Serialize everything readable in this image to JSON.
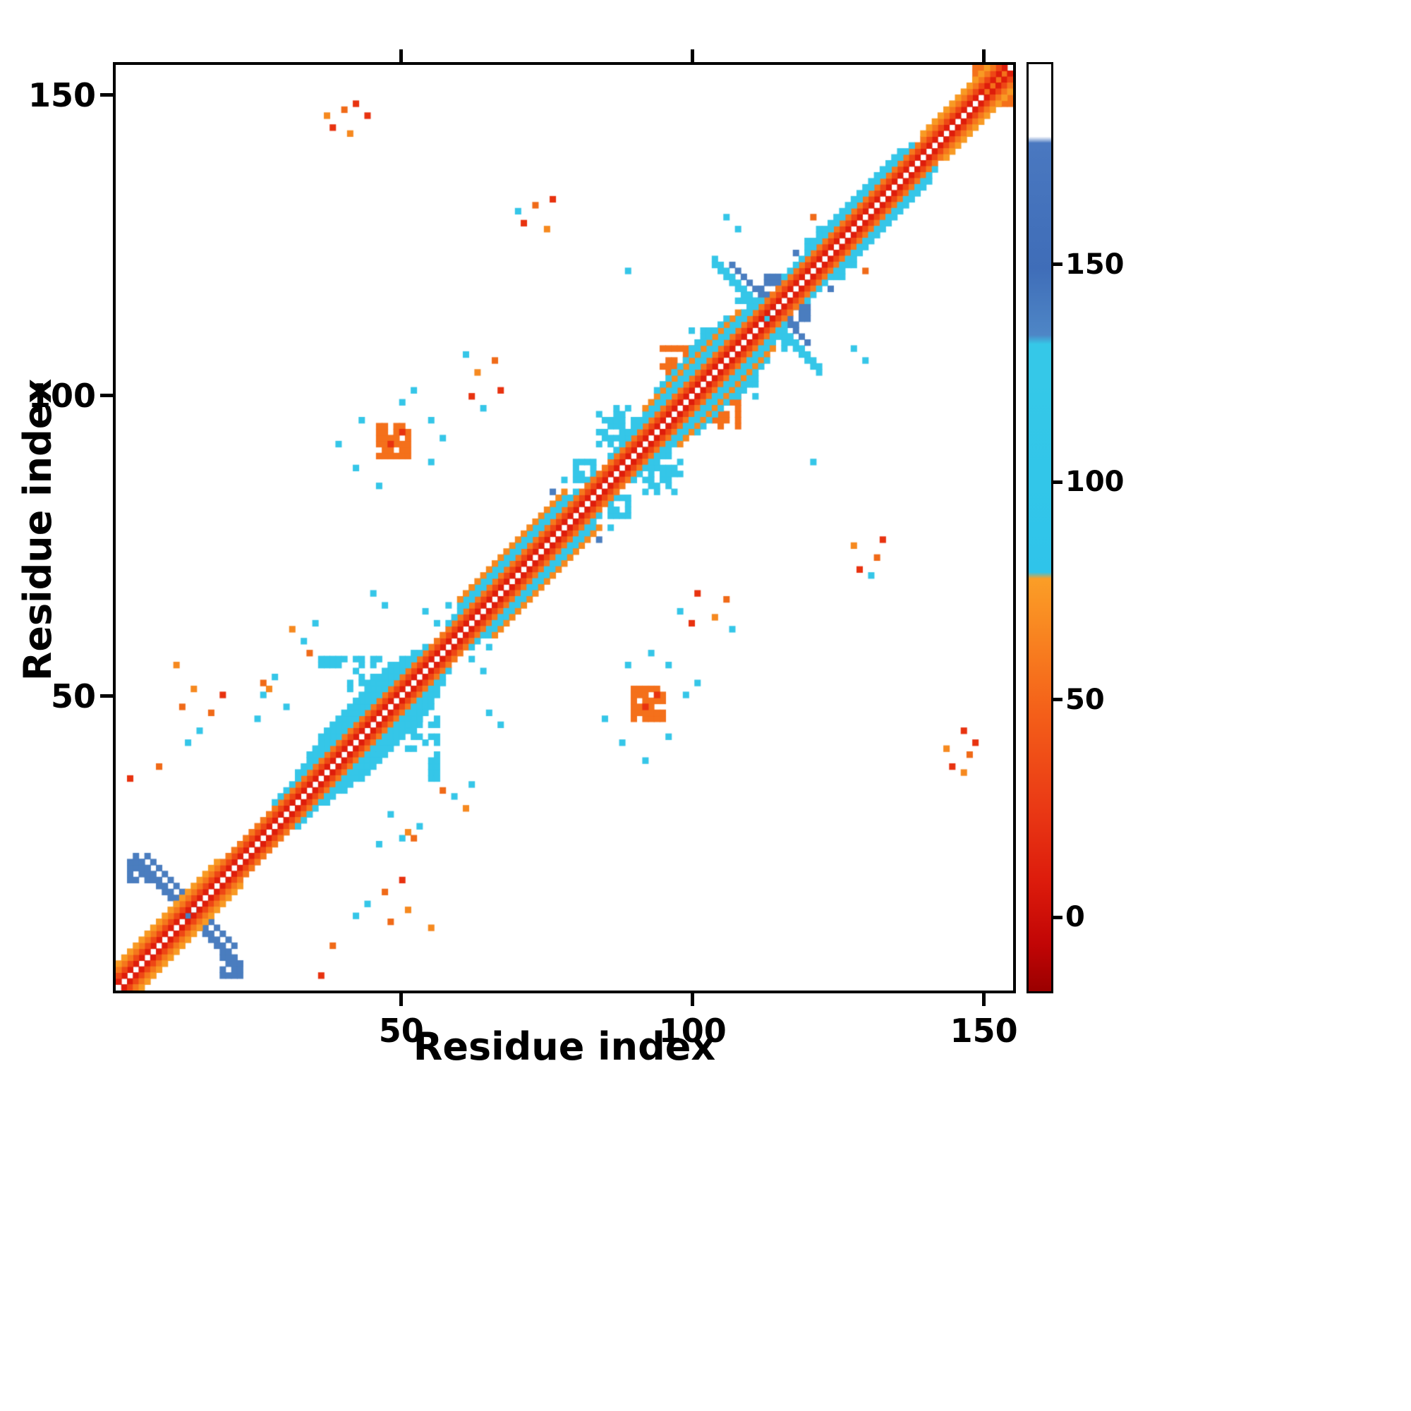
{
  "chart_data": {
    "type": "heatmap",
    "title": "",
    "xlabel": "Residue index",
    "ylabel": "Residue index",
    "x_range": [
      1,
      155
    ],
    "y_range": [
      1,
      155
    ],
    "x_ticks": [
      50,
      100,
      150
    ],
    "y_ticks": [
      50,
      100,
      150
    ],
    "n": 155,
    "grid": false,
    "legend": false,
    "background_color": "#ffffff",
    "colorbar": {
      "min": -17,
      "max": 196,
      "ticks": [
        0,
        50,
        100,
        150
      ],
      "stops": [
        [
          0.0,
          "#9a0000"
        ],
        [
          0.05,
          "#c10505"
        ],
        [
          0.12,
          "#dd1c0c"
        ],
        [
          0.2,
          "#ea3a15"
        ],
        [
          0.3,
          "#f45f19"
        ],
        [
          0.4,
          "#f98b22"
        ],
        [
          0.445,
          "#fb9e27"
        ],
        [
          0.452,
          "#2fc4ea"
        ],
        [
          0.66,
          "#35c8e8"
        ],
        [
          0.698,
          "#35c8e8"
        ],
        [
          0.708,
          "#4e86c6"
        ],
        [
          0.78,
          "#3f6db8"
        ],
        [
          0.915,
          "#4a78c0"
        ],
        [
          0.922,
          "#ffffff"
        ],
        [
          1.0,
          "#ffffff"
        ]
      ]
    },
    "palette": {
      "red": "#de1d0b",
      "orange_red": "#ee4715",
      "orange": "#f5771c",
      "light_orange": "#f89a24",
      "cyan": "#35c6e8",
      "blue": "#4a7dbf"
    },
    "features": {
      "diagonals": [
        {
          "off": 1,
          "from": 1,
          "to": 154,
          "color": "#de1d0b"
        },
        {
          "off": 2,
          "from": 1,
          "to": 153,
          "color": "#ee4715"
        },
        {
          "off": 3,
          "from": 1,
          "to": 152,
          "color": "#f5771c"
        },
        {
          "off": 4,
          "from": 1,
          "to": 18,
          "color": "#f89a24"
        },
        {
          "off": 4,
          "from": 140,
          "to": 151,
          "color": "#f89a24"
        },
        {
          "off": 4,
          "from": 28,
          "to": 54,
          "color": "#35c6e8"
        },
        {
          "off": 4,
          "from": 58,
          "to": 80,
          "color": "#35c6e8"
        },
        {
          "off": 4,
          "from": 86,
          "to": 112,
          "color": "#35c6e8"
        },
        {
          "off": 4,
          "from": 116,
          "to": 138,
          "color": "#35c6e8"
        },
        {
          "off": 5,
          "from": 32,
          "to": 52,
          "color": "#35c6e8"
        },
        {
          "off": 5,
          "from": 60,
          "to": 78,
          "color": "#35c6e8"
        },
        {
          "off": 5,
          "from": 88,
          "to": 110,
          "color": "#35c6e8"
        },
        {
          "off": 5,
          "from": 120,
          "to": 136,
          "color": "#35c6e8"
        },
        {
          "off": 6,
          "from": 34,
          "to": 50,
          "color": "#35c6e8"
        },
        {
          "off": 6,
          "from": 60,
          "to": 78,
          "color": "#f6891f"
        },
        {
          "off": 6,
          "from": 92,
          "to": 108,
          "color": "#f6891f"
        },
        {
          "off": 7,
          "from": 36,
          "to": 48,
          "color": "#35c6e8"
        },
        {
          "off": 7,
          "from": 94,
          "to": 106,
          "color": "#35c6e8"
        }
      ],
      "antidiagonals": [
        {
          "sum": 26,
          "from": 4,
          "to": 22,
          "width": 2,
          "color": "#4a7dbf"
        },
        {
          "sum": 29,
          "from": 6,
          "to": 21,
          "width": 1,
          "color": "#4a7dbf"
        },
        {
          "sum": 226,
          "from": 104,
          "to": 122,
          "width": 2,
          "color": "#35c6e8"
        },
        {
          "sum": 229,
          "from": 107,
          "to": 120,
          "width": 1,
          "color": "#4a7dbf"
        }
      ],
      "blobs": [
        {
          "x": 46,
          "y": 90,
          "w": 6,
          "h": 6,
          "density": 0.75,
          "color": "#f4701b"
        },
        {
          "x": 84,
          "y": 92,
          "w": 7,
          "h": 7,
          "density": 0.5,
          "color": "#35c6e8"
        },
        {
          "x": 80,
          "y": 86,
          "w": 4,
          "h": 4,
          "density": 0.6,
          "color": "#35c6e8"
        },
        {
          "x": 95,
          "y": 103,
          "w": 6,
          "h": 6,
          "density": 0.6,
          "color": "#f4701b"
        },
        {
          "x": 100,
          "y": 108,
          "w": 5,
          "h": 4,
          "density": 0.5,
          "color": "#35c6e8"
        },
        {
          "x": 41,
          "y": 51,
          "w": 6,
          "h": 6,
          "density": 0.6,
          "color": "#35c6e8"
        },
        {
          "x": 36,
          "y": 55,
          "w": 5,
          "h": 2,
          "density": 0.7,
          "color": "#35c6e8"
        },
        {
          "x": 108,
          "y": 114,
          "w": 5,
          "h": 4,
          "density": 0.5,
          "color": "#35c6e8"
        },
        {
          "x": 112,
          "y": 117,
          "w": 4,
          "h": 4,
          "density": 0.4,
          "color": "#4a7dbf"
        },
        {
          "x": 3,
          "y": 19,
          "w": 4,
          "h": 4,
          "density": 0.5,
          "color": "#4a7dbf"
        },
        {
          "x": 149,
          "y": 151,
          "w": 6,
          "h": 5,
          "density": 0.8,
          "color": "#f4701b"
        }
      ],
      "dots": [
        [
          38,
          145,
          "#e8320f"
        ],
        [
          40,
          148,
          "#f06a18"
        ],
        [
          42,
          149,
          "#e8320f"
        ],
        [
          41,
          144,
          "#f6891f"
        ],
        [
          44,
          147,
          "#e8320f"
        ],
        [
          37,
          147,
          "#f6891f"
        ],
        [
          71,
          129,
          "#e8320f"
        ],
        [
          73,
          132,
          "#f06a18"
        ],
        [
          76,
          133,
          "#e8320f"
        ],
        [
          75,
          128,
          "#f6891f"
        ],
        [
          70,
          131,
          "#35c6e8"
        ],
        [
          62,
          100,
          "#e8320f"
        ],
        [
          63,
          104,
          "#f6891f"
        ],
        [
          66,
          106,
          "#f06a18"
        ],
        [
          61,
          107,
          "#35c6e8"
        ],
        [
          67,
          101,
          "#e8320f"
        ],
        [
          64,
          98,
          "#35c6e8"
        ],
        [
          33,
          59,
          "#35c6e8"
        ],
        [
          35,
          62,
          "#35c6e8"
        ],
        [
          31,
          61,
          "#f6891f"
        ],
        [
          34,
          57,
          "#f06a18"
        ],
        [
          26,
          50,
          "#35c6e8"
        ],
        [
          28,
          53,
          "#35c6e8"
        ],
        [
          25,
          46,
          "#35c6e8"
        ],
        [
          27,
          51,
          "#f6891f"
        ],
        [
          30,
          48,
          "#35c6e8"
        ],
        [
          26,
          52,
          "#f06a18"
        ],
        [
          12,
          48,
          "#f06a18"
        ],
        [
          14,
          51,
          "#f6891f"
        ],
        [
          17,
          47,
          "#f06a18"
        ],
        [
          19,
          50,
          "#e8320f"
        ],
        [
          15,
          44,
          "#35c6e8"
        ],
        [
          13,
          42,
          "#35c6e8"
        ],
        [
          3,
          36,
          "#e8320f"
        ],
        [
          8,
          38,
          "#f06a18"
        ],
        [
          11,
          55,
          "#f6891f"
        ],
        [
          56,
          62,
          "#35c6e8"
        ],
        [
          58,
          65,
          "#35c6e8"
        ],
        [
          54,
          64,
          "#35c6e8"
        ],
        [
          120,
          126,
          "#35c6e8"
        ],
        [
          122,
          128,
          "#35c6e8"
        ],
        [
          118,
          124,
          "#4a7dbf"
        ],
        [
          121,
          130,
          "#f06a18"
        ],
        [
          76,
          84,
          "#4a7dbf"
        ],
        [
          78,
          86,
          "#35c6e8"
        ],
        [
          106,
          130,
          "#35c6e8"
        ],
        [
          108,
          128,
          "#35c6e8"
        ],
        [
          89,
          121,
          "#35c6e8"
        ],
        [
          47,
          65,
          "#35c6e8"
        ],
        [
          45,
          67,
          "#35c6e8"
        ],
        [
          48,
          92,
          "#e8320f"
        ],
        [
          50,
          94,
          "#e8320f"
        ],
        [
          43,
          96,
          "#35c6e8"
        ],
        [
          55,
          96,
          "#35c6e8"
        ],
        [
          42,
          88,
          "#35c6e8"
        ],
        [
          55,
          89,
          "#35c6e8"
        ],
        [
          50,
          99,
          "#35c6e8"
        ],
        [
          39,
          92,
          "#35c6e8"
        ],
        [
          57,
          93,
          "#35c6e8"
        ],
        [
          46,
          85,
          "#35c6e8"
        ],
        [
          52,
          101,
          "#35c6e8"
        ]
      ]
    }
  }
}
